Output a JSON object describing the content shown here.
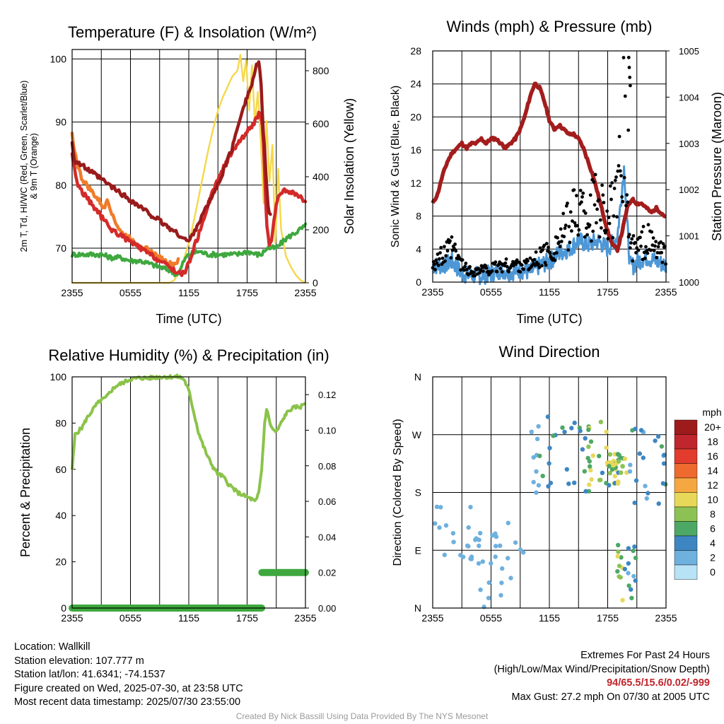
{
  "time_ticks": [
    "2355",
    "0555",
    "1155",
    "1755",
    "2355"
  ],
  "chart_data": [
    {
      "id": "temp",
      "type": "line",
      "title": "Temperature (F) & Insolation (W/m²)",
      "xlabel": "Time (UTC)",
      "ylabel_lines": [
        "2m T, Td, HI/WC (Red, Green, Scarlet/Blue)",
        "& 9m T (Orange)"
      ],
      "ylabel_right": "Solar Insolation (Yellow)",
      "xlim": [
        0,
        24
      ],
      "ylim": [
        64.5,
        101.5
      ],
      "ylim_right": [
        0,
        880
      ],
      "yticks": [
        70,
        80,
        90,
        100
      ],
      "yticks_right": [
        0,
        200,
        400,
        600,
        800
      ],
      "colors": {
        "t2m": "#d42a2a",
        "t9m": "#f07b2a",
        "td": "#3ea83e",
        "hi": "#9a1b1b",
        "sol": "#f5d84a"
      },
      "series": [
        {
          "key": "t2m",
          "x": [
            0,
            0.3,
            0.6,
            1,
            1.5,
            2,
            2.5,
            3,
            3.5,
            4,
            4.5,
            5,
            5.5,
            6,
            6.5,
            7,
            7.5,
            8,
            8.5,
            9,
            9.5,
            10,
            10.5,
            11,
            11.5,
            12,
            12.5,
            13,
            13.5,
            14,
            14.5,
            15,
            15.5,
            16,
            16.5,
            17,
            17.5,
            18,
            18.5,
            19,
            19.3,
            19.6,
            19.8,
            20,
            20.3,
            20.6,
            21,
            21.5,
            22,
            22.5,
            23,
            23.5,
            24
          ],
          "y": [
            85,
            82,
            80,
            79,
            78,
            77,
            76,
            75,
            74,
            73,
            72.5,
            72,
            71.5,
            71,
            70.5,
            70,
            69.5,
            69,
            68.5,
            68,
            67.5,
            67,
            66.5,
            66,
            66,
            67.5,
            70,
            72,
            74.5,
            77,
            79,
            81,
            82.5,
            84,
            85.5,
            86.5,
            87.5,
            88.5,
            89.5,
            90.5,
            91.5,
            89,
            82,
            74,
            70,
            72,
            77,
            79,
            79,
            79,
            78.5,
            78,
            77
          ]
        },
        {
          "key": "t9m",
          "x": [
            0,
            0.3,
            0.6,
            1,
            1.5,
            2,
            2.5,
            3,
            3.3,
            3.6,
            4,
            4.5,
            5,
            5.5,
            6,
            6.5,
            7,
            7.5,
            8,
            8.5,
            9,
            9.5,
            10,
            10.5,
            11
          ],
          "y": [
            88,
            85,
            83,
            81,
            80,
            79,
            78,
            77,
            76,
            78,
            76,
            74,
            72.5,
            72,
            71.5,
            71,
            70.5,
            70,
            69.5,
            69,
            68.5,
            68,
            67.5,
            67.5,
            68
          ]
        },
        {
          "key": "td",
          "x": [
            0,
            1,
            2,
            3,
            4,
            5,
            6,
            7,
            8,
            9,
            10,
            10.5,
            11,
            11.5,
            12,
            13,
            14,
            15,
            16,
            17,
            18,
            19,
            19.5,
            20,
            20.5,
            21,
            22,
            23,
            24
          ],
          "y": [
            69,
            69,
            69,
            69,
            68.5,
            68.5,
            68,
            68,
            67.5,
            67,
            66.5,
            66,
            66,
            68,
            69,
            69.5,
            69,
            69,
            69,
            69,
            69.5,
            69,
            69,
            70,
            70,
            70,
            71.5,
            72.5,
            73.5
          ]
        },
        {
          "key": "hi",
          "x": [
            0,
            0.2,
            12,
            13,
            14,
            15,
            16,
            16.5,
            17,
            17.5,
            18,
            18.5,
            18.8,
            19,
            19.2,
            19.4,
            19.6,
            19.8,
            20,
            20.2,
            20.4,
            20.5
          ],
          "y": [
            87,
            84,
            71,
            74,
            77,
            80,
            84,
            86,
            89,
            92,
            94,
            96,
            98,
            99,
            99.5,
            97,
            90,
            86,
            80,
            76,
            75,
            75
          ]
        },
        {
          "key": "sol",
          "axis": "right",
          "x": [
            0,
            1,
            2,
            3,
            4,
            5,
            6,
            7,
            8,
            9,
            10,
            10.5,
            11,
            11.5,
            12,
            12.5,
            13,
            13.5,
            14,
            14.5,
            15,
            15.5,
            16,
            16.5,
            17,
            17.3,
            17.6,
            17.9,
            18.2,
            18.5,
            18.8,
            19.1,
            19.4,
            19.7,
            20,
            20.3,
            20.6,
            20.9,
            21.2,
            21.5,
            22,
            22.5,
            23,
            23.5,
            24
          ],
          "y": [
            0,
            0,
            0,
            0,
            0,
            0,
            0,
            0,
            0,
            0,
            0,
            10,
            40,
            90,
            150,
            230,
            320,
            410,
            500,
            580,
            650,
            700,
            740,
            780,
            800,
            860,
            760,
            840,
            650,
            820,
            600,
            720,
            540,
            300,
            610,
            380,
            520,
            150,
            430,
            200,
            100,
            60,
            30,
            10,
            0
          ]
        }
      ]
    },
    {
      "id": "wind",
      "type": "line",
      "title": "Winds (mph) & Pressure (mb)",
      "xlabel": "Time (UTC)",
      "ylabel": "Sonic Wind & Gust (Blue, Black)",
      "ylabel_right": "Station Pressure (Maroon)",
      "xlim": [
        0,
        24
      ],
      "ylim": [
        0,
        28
      ],
      "ylim_right": [
        1000,
        1005
      ],
      "yticks": [
        0,
        4,
        8,
        12,
        16,
        20,
        24,
        28
      ],
      "yticks_right": [
        1000,
        1001,
        1002,
        1003,
        1004,
        1005
      ],
      "colors": {
        "wind": "#4d97d6",
        "gust": "#000000",
        "pressure": "#a31d1d"
      },
      "series": [
        {
          "key": "pressure",
          "axis": "right",
          "x": [
            0,
            0.5,
            1,
            1.5,
            2,
            2.5,
            3,
            3.5,
            4,
            4.5,
            5,
            5.5,
            6,
            6.5,
            7,
            7.5,
            8,
            8.5,
            9,
            9.5,
            10,
            10.5,
            11,
            11.5,
            12,
            12.5,
            13,
            13.5,
            14,
            14.5,
            15,
            15.5,
            16,
            16.5,
            17,
            17.5,
            18,
            18.5,
            19,
            19.5,
            20,
            20.5,
            21,
            21.5,
            22,
            22.5,
            23,
            23.5,
            24
          ],
          "y": [
            1001.7,
            1001.9,
            1002.3,
            1002.6,
            1002.8,
            1002.9,
            1003.0,
            1002.9,
            1003.0,
            1003.0,
            1003.1,
            1003.0,
            1003.1,
            1003.1,
            1003.0,
            1002.9,
            1003.0,
            1003.1,
            1003.3,
            1003.6,
            1004.0,
            1004.3,
            1004.2,
            1003.9,
            1003.5,
            1003.3,
            1003.4,
            1003.3,
            1003.2,
            1003.2,
            1003.1,
            1002.9,
            1002.6,
            1002.3,
            1001.9,
            1001.5,
            1001.1,
            1000.8,
            1000.7,
            1001.1,
            1001.6,
            1001.8,
            1001.7,
            1001.7,
            1001.6,
            1001.5,
            1001.6,
            1001.5,
            1001.4
          ]
        }
      ],
      "wind_profile": {
        "x": [
          0,
          1,
          2,
          3,
          4,
          5,
          6,
          7,
          8,
          9,
          10,
          11,
          12,
          13,
          14,
          15,
          16,
          17,
          18,
          19,
          19.7,
          20,
          20.3,
          20.7,
          21,
          22,
          23,
          24
        ],
        "y": [
          2,
          2,
          2.5,
          1,
          0.8,
          0.8,
          1,
          1.5,
          1.2,
          1.5,
          1.2,
          2,
          2.5,
          3.5,
          4,
          5,
          4.5,
          5,
          4,
          5.5,
          14,
          7,
          2,
          2,
          2.5,
          3,
          2.5,
          2
        ]
      },
      "gust_profile": {
        "x": [
          0,
          1,
          2,
          3,
          4,
          5,
          6,
          7,
          8,
          9,
          10,
          11,
          12,
          13,
          14,
          15,
          16,
          17,
          18,
          19,
          19.7,
          20,
          20.3,
          20.7,
          21,
          22,
          23,
          24
        ],
        "y": [
          2.5,
          3,
          4,
          2,
          1.2,
          1.5,
          1.5,
          2,
          2,
          2.2,
          2,
          3,
          3.5,
          5,
          7,
          9,
          8,
          10,
          8,
          9,
          20,
          10,
          4,
          4,
          4,
          5,
          4,
          3
        ]
      },
      "max_gust_point": {
        "x": 20.17,
        "y": 27.2
      }
    },
    {
      "id": "rh",
      "type": "line",
      "title": "Relative Humidity (%) & Precipitation (in)",
      "ylabel": "Percent & Precipitation",
      "xlim": [
        0,
        24
      ],
      "ylim": [
        0,
        100
      ],
      "ylim_right": [
        0,
        0.13
      ],
      "yticks": [
        0,
        20,
        40,
        60,
        80,
        100
      ],
      "yticks_right": [
        0.0,
        0.02,
        0.04,
        0.06,
        0.08,
        0.1,
        0.12
      ],
      "colors": {
        "rh": "#8bc34a",
        "precip": "#3ea83e"
      },
      "series": [
        {
          "key": "rh",
          "x": [
            0,
            0.3,
            1,
            1.5,
            2,
            2.5,
            3,
            3.5,
            4,
            4.5,
            5,
            5.5,
            6,
            7,
            8,
            9,
            10,
            10.5,
            11,
            11.5,
            12,
            12.5,
            13,
            13.5,
            14,
            14.5,
            15,
            15.5,
            16,
            16.5,
            17,
            17.5,
            18,
            18.5,
            18.8,
            19,
            19.2,
            19.5,
            19.8,
            20,
            20.5,
            21,
            21.5,
            22,
            22.5,
            23,
            23.5,
            24
          ],
          "y": [
            60,
            75,
            78,
            82,
            85,
            88,
            90,
            91,
            94,
            96,
            97,
            98,
            99,
            99.5,
            99.5,
            100,
            100,
            100,
            100,
            99,
            94,
            85,
            76,
            70,
            65,
            61,
            58,
            57,
            54,
            52,
            50,
            49,
            48,
            47,
            46,
            47,
            50,
            60,
            80,
            86,
            78,
            76,
            80,
            84,
            86,
            87,
            87,
            89
          ]
        },
        {
          "key": "precip",
          "axis": "right",
          "x": [
            0,
            19.5,
            19.52,
            24
          ],
          "y": [
            0,
            0,
            0.02,
            0.02
          ]
        }
      ]
    },
    {
      "id": "wdir",
      "type": "scatter",
      "title": "Wind Direction",
      "ylabel": "Direction (Colored By Speed)",
      "xlim": [
        0,
        24
      ],
      "ylim": [
        0,
        360
      ],
      "yticks": [
        0,
        90,
        180,
        270,
        360
      ],
      "ytick_labels": [
        "N",
        "E",
        "S",
        "W",
        "N"
      ],
      "colorbar": {
        "unit": "mph",
        "labels": [
          "20+",
          "18",
          "16",
          "14",
          "12",
          "10",
          "8",
          "6",
          "4",
          "2",
          "0"
        ],
        "colors": [
          "#9e1b1b",
          "#c0262d",
          "#e23c2e",
          "#ef6a2f",
          "#f5a742",
          "#e8d85a",
          "#8cc253",
          "#4ea865",
          "#3e86c2",
          "#6eb0de",
          "#b8e2f5"
        ]
      },
      "clusters": [
        {
          "x0": 0,
          "x1": 5,
          "dir0": 50,
          "dir1": 160,
          "c": 10
        },
        {
          "x0": 4.5,
          "x1": 10,
          "dir0": 0,
          "dir1": 150,
          "c": 10
        },
        {
          "x0": 10,
          "x1": 14,
          "dir0": 170,
          "dir1": 300,
          "c": 9
        },
        {
          "x0": 14,
          "x1": 18,
          "dir0": 180,
          "dir1": 290,
          "c": 8
        },
        {
          "x0": 16,
          "x1": 20,
          "dir0": 190,
          "dir1": 240,
          "c": 7
        },
        {
          "x0": 18,
          "x1": 20,
          "dir0": 210,
          "dir1": 240,
          "c": 4
        },
        {
          "x0": 20,
          "x1": 24,
          "dir0": 160,
          "dir1": 280,
          "c": 8
        },
        {
          "x0": 19,
          "x1": 21,
          "dir0": 10,
          "dir1": 100,
          "c": 6
        }
      ]
    }
  ],
  "info": {
    "location": "Location: Wallkill",
    "elevation": "Station elevation: 107.777 m",
    "latlon": "Station lat/lon: 41.6341; -74.1537",
    "created": "Figure created on Wed, 2025-07-30, at 23:58 UTC",
    "recent": "Most recent data timestamp: 2025/07/30 23:55:00"
  },
  "extremes": {
    "title": "Extremes For Past 24 Hours",
    "subtitle": "(High/Low/Max Wind/Precipitation/Snow Depth)",
    "values": "94/65.5/15.6/0.02/-999",
    "max_gust": "Max Gust: 27.2 mph On 07/30 at 2005 UTC"
  },
  "credit": "Created By Nick Bassill Using Data Provided By The NYS Mesonet"
}
